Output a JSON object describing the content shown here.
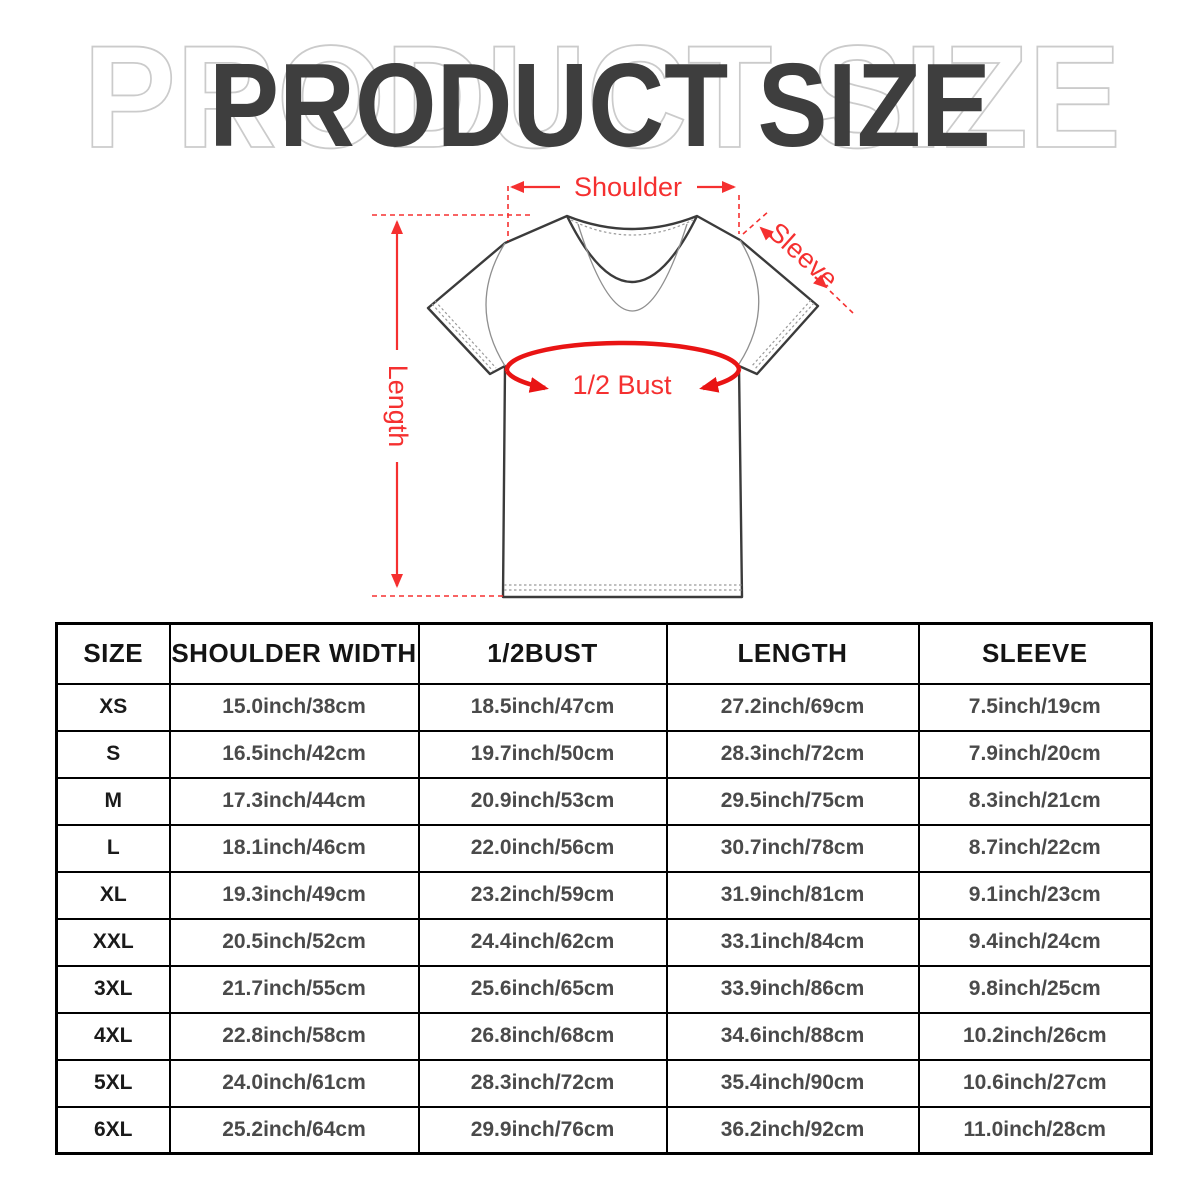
{
  "title": {
    "main": "PRODUCT SIZE",
    "watermark": "PRODUCT SIZE"
  },
  "diagram": {
    "shoulder_label": "Shoulder",
    "sleeve_label": "Sleeve",
    "length_label": "Length",
    "bust_label": "1/2 Bust",
    "annotation_color": "#f53030",
    "bust_color": "#e91414"
  },
  "table": {
    "headers": [
      "SIZE",
      "SHOULDER WIDTH",
      "1/2BUST",
      "LENGTH",
      "SLEEVE"
    ],
    "rows": [
      [
        "XS",
        "15.0inch/38cm",
        "18.5inch/47cm",
        "27.2inch/69cm",
        "7.5inch/19cm"
      ],
      [
        "S",
        "16.5inch/42cm",
        "19.7inch/50cm",
        "28.3inch/72cm",
        "7.9inch/20cm"
      ],
      [
        "M",
        "17.3inch/44cm",
        "20.9inch/53cm",
        "29.5inch/75cm",
        "8.3inch/21cm"
      ],
      [
        "L",
        "18.1inch/46cm",
        "22.0inch/56cm",
        "30.7inch/78cm",
        "8.7inch/22cm"
      ],
      [
        "XL",
        "19.3inch/49cm",
        "23.2inch/59cm",
        "31.9inch/81cm",
        "9.1inch/23cm"
      ],
      [
        "XXL",
        "20.5inch/52cm",
        "24.4inch/62cm",
        "33.1inch/84cm",
        "9.4inch/24cm"
      ],
      [
        "3XL",
        "21.7inch/55cm",
        "25.6inch/65cm",
        "33.9inch/86cm",
        "9.8inch/25cm"
      ],
      [
        "4XL",
        "22.8inch/58cm",
        "26.8inch/68cm",
        "34.6inch/88cm",
        "10.2inch/26cm"
      ],
      [
        "5XL",
        "24.0inch/61cm",
        "28.3inch/72cm",
        "35.4inch/90cm",
        "10.6inch/27cm"
      ],
      [
        "6XL",
        "25.2inch/64cm",
        "29.9inch/76cm",
        "36.2inch/92cm",
        "11.0inch/28cm"
      ]
    ]
  }
}
